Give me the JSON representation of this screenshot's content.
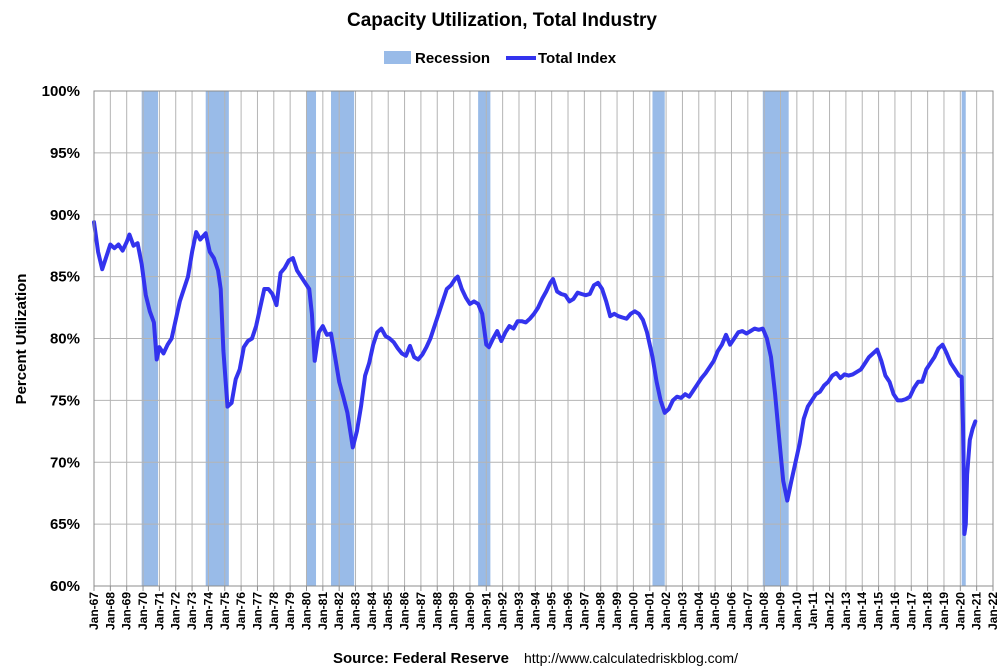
{
  "chart_data": {
    "type": "line",
    "title": "Capacity Utilization, Total Industry",
    "ylabel": "Percent Utilization",
    "xlabel": "",
    "ylim": [
      60,
      100
    ],
    "xlim": [
      "1967-01",
      "2022-01"
    ],
    "grid": true,
    "legend_position": "top-center",
    "legend": [
      "Recession",
      "Total Index"
    ],
    "y_ticks": [
      "60%",
      "65%",
      "70%",
      "75%",
      "80%",
      "85%",
      "90%",
      "95%",
      "100%"
    ],
    "x_ticks": [
      "Jan-67",
      "Jan-68",
      "Jan-69",
      "Jan-70",
      "Jan-71",
      "Jan-72",
      "Jan-73",
      "Jan-74",
      "Jan-75",
      "Jan-76",
      "Jan-77",
      "Jan-78",
      "Jan-79",
      "Jan-80",
      "Jan-81",
      "Jan-82",
      "Jan-83",
      "Jan-84",
      "Jan-85",
      "Jan-86",
      "Jan-87",
      "Jan-88",
      "Jan-89",
      "Jan-90",
      "Jan-91",
      "Jan-92",
      "Jan-93",
      "Jan-94",
      "Jan-95",
      "Jan-96",
      "Jan-97",
      "Jan-98",
      "Jan-99",
      "Jan-00",
      "Jan-01",
      "Jan-02",
      "Jan-03",
      "Jan-04",
      "Jan-05",
      "Jan-06",
      "Jan-07",
      "Jan-08",
      "Jan-09",
      "Jan-10",
      "Jan-11",
      "Jan-12",
      "Jan-13",
      "Jan-14",
      "Jan-15",
      "Jan-16",
      "Jan-17",
      "Jan-18",
      "Jan-19",
      "Jan-20",
      "Jan-21",
      "Jan-22"
    ],
    "recessions": [
      [
        "1969-12",
        "1970-11"
      ],
      [
        "1973-11",
        "1975-03"
      ],
      [
        "1980-01",
        "1980-07"
      ],
      [
        "1981-07",
        "1982-11"
      ],
      [
        "1990-07",
        "1991-03"
      ],
      [
        "2001-03",
        "2001-11"
      ],
      [
        "2007-12",
        "2009-06"
      ],
      [
        "2020-02",
        "2020-04"
      ]
    ],
    "series": [
      {
        "name": "Total Index",
        "points": [
          [
            "1967-01",
            89.4
          ],
          [
            "1967-04",
            87.0
          ],
          [
            "1967-07",
            85.6
          ],
          [
            "1967-10",
            86.6
          ],
          [
            "1968-01",
            87.6
          ],
          [
            "1968-04",
            87.3
          ],
          [
            "1968-07",
            87.6
          ],
          [
            "1968-10",
            87.1
          ],
          [
            "1969-01",
            87.8
          ],
          [
            "1969-03",
            88.4
          ],
          [
            "1969-06",
            87.5
          ],
          [
            "1969-09",
            87.7
          ],
          [
            "1969-12",
            86.0
          ],
          [
            "1970-03",
            83.5
          ],
          [
            "1970-06",
            82.2
          ],
          [
            "1970-09",
            81.3
          ],
          [
            "1970-11",
            78.3
          ],
          [
            "1971-01",
            79.3
          ],
          [
            "1971-04",
            78.8
          ],
          [
            "1971-07",
            79.5
          ],
          [
            "1971-10",
            80.0
          ],
          [
            "1972-01",
            81.5
          ],
          [
            "1972-04",
            83.0
          ],
          [
            "1972-07",
            84.0
          ],
          [
            "1972-10",
            85.0
          ],
          [
            "1973-01",
            87.0
          ],
          [
            "1973-04",
            88.6
          ],
          [
            "1973-07",
            88.0
          ],
          [
            "1973-11",
            88.5
          ],
          [
            "1974-02",
            87.0
          ],
          [
            "1974-05",
            86.5
          ],
          [
            "1974-08",
            85.5
          ],
          [
            "1974-10",
            84.0
          ],
          [
            "1974-12",
            79.0
          ],
          [
            "1975-03",
            74.5
          ],
          [
            "1975-06",
            74.8
          ],
          [
            "1975-09",
            76.7
          ],
          [
            "1975-12",
            77.5
          ],
          [
            "1976-03",
            79.3
          ],
          [
            "1976-06",
            79.8
          ],
          [
            "1976-09",
            80.0
          ],
          [
            "1976-12",
            81.0
          ],
          [
            "1977-03",
            82.5
          ],
          [
            "1977-06",
            84.0
          ],
          [
            "1977-09",
            84.0
          ],
          [
            "1977-12",
            83.6
          ],
          [
            "1978-03",
            82.7
          ],
          [
            "1978-06",
            85.3
          ],
          [
            "1978-09",
            85.7
          ],
          [
            "1978-12",
            86.3
          ],
          [
            "1979-03",
            86.5
          ],
          [
            "1979-06",
            85.5
          ],
          [
            "1979-09",
            85.0
          ],
          [
            "1979-12",
            84.5
          ],
          [
            "1980-03",
            84.0
          ],
          [
            "1980-05",
            82.0
          ],
          [
            "1980-07",
            78.2
          ],
          [
            "1980-10",
            80.5
          ],
          [
            "1981-01",
            81.0
          ],
          [
            "1981-04",
            80.3
          ],
          [
            "1981-07",
            80.4
          ],
          [
            "1981-10",
            78.5
          ],
          [
            "1982-01",
            76.5
          ],
          [
            "1982-04",
            75.3
          ],
          [
            "1982-07",
            74.0
          ],
          [
            "1982-11",
            71.2
          ],
          [
            "1983-02",
            72.5
          ],
          [
            "1983-05",
            74.5
          ],
          [
            "1983-08",
            77.0
          ],
          [
            "1983-11",
            78.0
          ],
          [
            "1984-02",
            79.5
          ],
          [
            "1984-05",
            80.5
          ],
          [
            "1984-08",
            80.8
          ],
          [
            "1984-11",
            80.2
          ],
          [
            "1985-02",
            80.0
          ],
          [
            "1985-05",
            79.7
          ],
          [
            "1985-08",
            79.2
          ],
          [
            "1985-11",
            78.8
          ],
          [
            "1986-02",
            78.6
          ],
          [
            "1986-05",
            79.4
          ],
          [
            "1986-08",
            78.5
          ],
          [
            "1986-11",
            78.3
          ],
          [
            "1987-02",
            78.7
          ],
          [
            "1987-05",
            79.3
          ],
          [
            "1987-08",
            80.0
          ],
          [
            "1987-11",
            81.0
          ],
          [
            "1988-02",
            82.0
          ],
          [
            "1988-05",
            83.0
          ],
          [
            "1988-08",
            84.0
          ],
          [
            "1988-11",
            84.3
          ],
          [
            "1989-02",
            84.8
          ],
          [
            "1989-04",
            85.0
          ],
          [
            "1989-07",
            84.0
          ],
          [
            "1989-10",
            83.3
          ],
          [
            "1990-01",
            82.8
          ],
          [
            "1990-04",
            83.0
          ],
          [
            "1990-07",
            82.8
          ],
          [
            "1990-10",
            82.0
          ],
          [
            "1991-01",
            79.5
          ],
          [
            "1991-03",
            79.3
          ],
          [
            "1991-06",
            80.0
          ],
          [
            "1991-09",
            80.6
          ],
          [
            "1991-12",
            79.8
          ],
          [
            "1992-03",
            80.5
          ],
          [
            "1992-06",
            81.0
          ],
          [
            "1992-09",
            80.8
          ],
          [
            "1992-12",
            81.4
          ],
          [
            "1993-03",
            81.4
          ],
          [
            "1993-06",
            81.3
          ],
          [
            "1993-09",
            81.6
          ],
          [
            "1993-12",
            82.0
          ],
          [
            "1994-03",
            82.5
          ],
          [
            "1994-06",
            83.2
          ],
          [
            "1994-09",
            83.8
          ],
          [
            "1994-12",
            84.5
          ],
          [
            "1995-02",
            84.8
          ],
          [
            "1995-05",
            83.8
          ],
          [
            "1995-08",
            83.6
          ],
          [
            "1995-11",
            83.5
          ],
          [
            "1996-02",
            83.0
          ],
          [
            "1996-05",
            83.2
          ],
          [
            "1996-08",
            83.7
          ],
          [
            "1996-11",
            83.6
          ],
          [
            "1997-02",
            83.5
          ],
          [
            "1997-05",
            83.6
          ],
          [
            "1997-08",
            84.3
          ],
          [
            "1997-11",
            84.5
          ],
          [
            "1998-02",
            84.0
          ],
          [
            "1998-05",
            83.0
          ],
          [
            "1998-08",
            81.8
          ],
          [
            "1998-11",
            82.0
          ],
          [
            "1999-02",
            81.8
          ],
          [
            "1999-05",
            81.7
          ],
          [
            "1999-08",
            81.6
          ],
          [
            "1999-11",
            82.0
          ],
          [
            "2000-02",
            82.2
          ],
          [
            "2000-05",
            82.0
          ],
          [
            "2000-08",
            81.5
          ],
          [
            "2000-11",
            80.5
          ],
          [
            "2001-03",
            78.5
          ],
          [
            "2001-06",
            76.5
          ],
          [
            "2001-09",
            75.0
          ],
          [
            "2001-12",
            74.0
          ],
          [
            "2002-03",
            74.3
          ],
          [
            "2002-06",
            75.0
          ],
          [
            "2002-09",
            75.3
          ],
          [
            "2002-12",
            75.2
          ],
          [
            "2003-03",
            75.5
          ],
          [
            "2003-06",
            75.3
          ],
          [
            "2003-09",
            75.8
          ],
          [
            "2003-12",
            76.3
          ],
          [
            "2004-03",
            76.8
          ],
          [
            "2004-06",
            77.2
          ],
          [
            "2004-09",
            77.7
          ],
          [
            "2004-12",
            78.2
          ],
          [
            "2005-03",
            79.0
          ],
          [
            "2005-06",
            79.5
          ],
          [
            "2005-09",
            80.3
          ],
          [
            "2005-12",
            79.5
          ],
          [
            "2006-03",
            80.0
          ],
          [
            "2006-06",
            80.5
          ],
          [
            "2006-09",
            80.6
          ],
          [
            "2006-12",
            80.4
          ],
          [
            "2007-03",
            80.6
          ],
          [
            "2007-06",
            80.8
          ],
          [
            "2007-09",
            80.7
          ],
          [
            "2007-12",
            80.8
          ],
          [
            "2008-03",
            80.0
          ],
          [
            "2008-06",
            78.5
          ],
          [
            "2008-09",
            75.5
          ],
          [
            "2008-12",
            72.0
          ],
          [
            "2009-03",
            68.5
          ],
          [
            "2009-06",
            66.9
          ],
          [
            "2009-09",
            68.5
          ],
          [
            "2009-12",
            70.0
          ],
          [
            "2010-03",
            71.5
          ],
          [
            "2010-06",
            73.5
          ],
          [
            "2010-09",
            74.5
          ],
          [
            "2010-12",
            75.0
          ],
          [
            "2011-03",
            75.5
          ],
          [
            "2011-06",
            75.7
          ],
          [
            "2011-09",
            76.2
          ],
          [
            "2011-12",
            76.5
          ],
          [
            "2012-03",
            77.0
          ],
          [
            "2012-06",
            77.2
          ],
          [
            "2012-09",
            76.8
          ],
          [
            "2012-12",
            77.1
          ],
          [
            "2013-03",
            77.0
          ],
          [
            "2013-06",
            77.1
          ],
          [
            "2013-09",
            77.3
          ],
          [
            "2013-12",
            77.5
          ],
          [
            "2014-03",
            78.0
          ],
          [
            "2014-06",
            78.5
          ],
          [
            "2014-09",
            78.8
          ],
          [
            "2014-12",
            79.1
          ],
          [
            "2015-03",
            78.2
          ],
          [
            "2015-06",
            77.0
          ],
          [
            "2015-09",
            76.5
          ],
          [
            "2015-12",
            75.5
          ],
          [
            "2016-03",
            75.0
          ],
          [
            "2016-06",
            75.0
          ],
          [
            "2016-09",
            75.1
          ],
          [
            "2016-12",
            75.3
          ],
          [
            "2017-03",
            76.0
          ],
          [
            "2017-06",
            76.5
          ],
          [
            "2017-09",
            76.5
          ],
          [
            "2017-12",
            77.5
          ],
          [
            "2018-03",
            78.0
          ],
          [
            "2018-06",
            78.5
          ],
          [
            "2018-09",
            79.2
          ],
          [
            "2018-12",
            79.5
          ],
          [
            "2019-03",
            78.8
          ],
          [
            "2019-06",
            78.0
          ],
          [
            "2019-09",
            77.5
          ],
          [
            "2019-12",
            77.0
          ],
          [
            "2020-02",
            76.9
          ],
          [
            "2020-03",
            73.0
          ],
          [
            "2020-04",
            64.2
          ],
          [
            "2020-05",
            65.0
          ],
          [
            "2020-06",
            69.0
          ],
          [
            "2020-08",
            71.8
          ],
          [
            "2020-10",
            72.7
          ],
          [
            "2020-12",
            73.3
          ]
        ]
      }
    ]
  },
  "colors": {
    "series": "#3333ee",
    "recession": "#99bbe8",
    "grid": "#b4b4b4"
  },
  "source": {
    "label": "Source: Federal Reserve",
    "url": "http://www.calculatedriskblog.com/"
  }
}
